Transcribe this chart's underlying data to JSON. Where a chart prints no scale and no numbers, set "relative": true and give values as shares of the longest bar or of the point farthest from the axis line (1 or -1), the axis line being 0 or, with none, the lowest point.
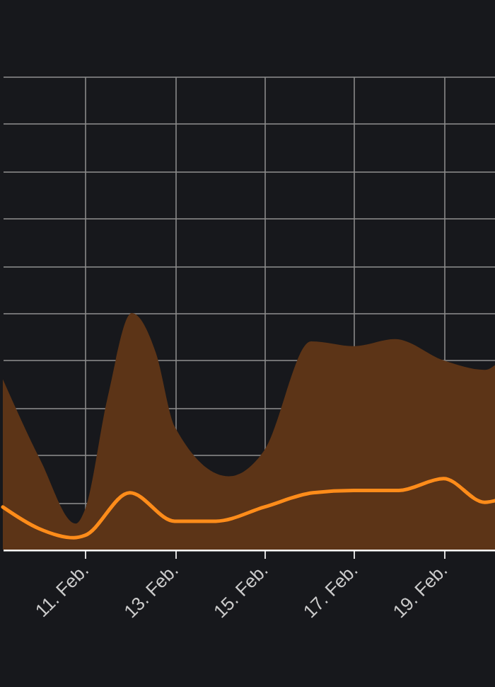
{
  "chart_data": {
    "type": "area",
    "relative": true,
    "grid": true,
    "xlim": [
      "--02-09T04:00",
      "--02-20T05:00"
    ],
    "xticks": [
      {
        "value": "--02-11",
        "label": "11. Feb."
      },
      {
        "value": "--02-13",
        "label": "13. Feb."
      },
      {
        "value": "--02-15",
        "label": "15. Feb."
      },
      {
        "value": "--02-17",
        "label": "17. Feb."
      },
      {
        "value": "--02-19",
        "label": "19. Feb."
      }
    ],
    "series": [
      {
        "type": "area",
        "color": "#5c3417",
        "x": [
          "--02-09T04:00",
          "--02-10T00:00",
          "--02-10T19:00",
          "--02-11T00:00",
          "--02-11T12:00",
          "--02-12T01:00",
          "--02-12T14:00",
          "--02-13T00:00",
          "--02-14T05:00",
          "--02-15T00:00",
          "--02-16T01:00",
          "--02-17T00:00",
          "--02-17T22:00",
          "--02-19T00:00",
          "--02-19T22:00",
          "--02-20T05:00"
        ],
        "values": [
          0.72,
          0.38,
          0.11,
          0.17,
          0.64,
          1.0,
          0.83,
          0.52,
          0.31,
          0.42,
          0.88,
          0.86,
          0.89,
          0.8,
          0.76,
          0.79
        ]
      },
      {
        "type": "line",
        "color": "#ff8c1a",
        "x": [
          "--02-09T04:00",
          "--02-09T23:00",
          "--02-10T18:00",
          "--02-11T00:00",
          "--02-12T00:00",
          "--02-13T00:00",
          "--02-13T22:00",
          "--02-15T00:00",
          "--02-16T02:00",
          "--02-17T00:00",
          "--02-18T00:00",
          "--02-19T00:00",
          "--02-19T22:00",
          "--02-20T05:00"
        ],
        "values": [
          0.18,
          0.09,
          0.05,
          0.06,
          0.24,
          0.12,
          0.12,
          0.18,
          0.24,
          0.25,
          0.25,
          0.3,
          0.2,
          0.21
        ]
      }
    ]
  }
}
